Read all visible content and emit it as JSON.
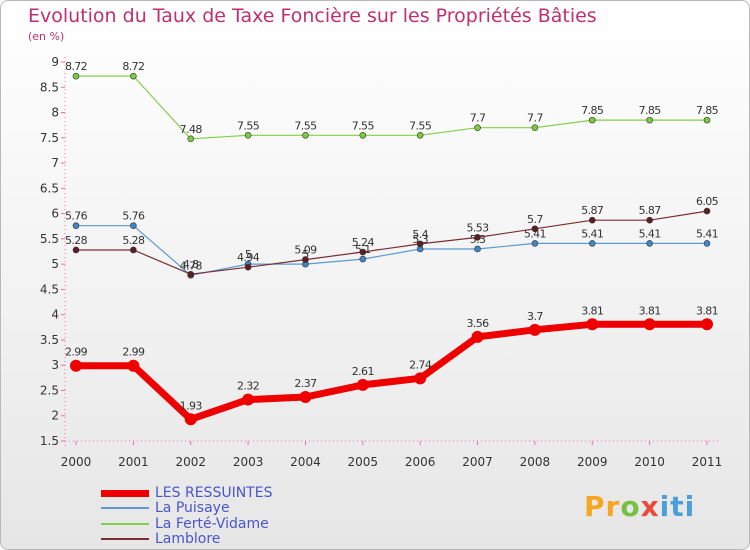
{
  "chart_data": {
    "type": "line",
    "title": "Evolution du Taux de Taxe Foncière sur les Propriétés Bâties",
    "ylabel": "(en %)",
    "xlabel": "",
    "ylim": [
      1.5,
      9
    ],
    "grid": false,
    "yticks": [
      "1.5",
      "2",
      "2.5",
      "3",
      "3.5",
      "4",
      "4.5",
      "5",
      "5.5",
      "6",
      "6.5",
      "7",
      "7.5",
      "8",
      "8.5",
      "9"
    ],
    "categories": [
      "2000",
      "2001",
      "2002",
      "2003",
      "2004",
      "2005",
      "2006",
      "2007",
      "2008",
      "2009",
      "2010",
      "2011"
    ],
    "series": [
      {
        "name": "La Ferté-Vidame",
        "color": "#82cf4b",
        "marker": "#7acb3e",
        "width": 1.2,
        "values": [
          8.72,
          8.72,
          7.48,
          7.55,
          7.55,
          7.55,
          7.55,
          7.7,
          7.7,
          7.85,
          7.85,
          7.85
        ],
        "labels": [
          "8.72",
          "8.72",
          "7.48",
          "7.55",
          "7.55",
          "7.55",
          "7.55",
          "7.7",
          "7.7",
          "7.85",
          "7.85",
          "7.85"
        ]
      },
      {
        "name": "La Puisaye",
        "color": "#5b9bd0",
        "marker": "#3f86c4",
        "width": 1.2,
        "values": [
          5.76,
          5.76,
          4.78,
          5.0,
          5.0,
          5.1,
          5.3,
          5.3,
          5.41,
          5.41,
          5.41,
          5.41
        ],
        "labels": [
          "5.76",
          "5.76",
          "4.78",
          "5",
          "5",
          "5.1",
          "5.3",
          "5.3",
          "5.41",
          "5.41",
          "5.41",
          "5.41"
        ]
      },
      {
        "name": "Lamblore",
        "color": "#7a2d35",
        "marker": "#5d1d25",
        "width": 1.2,
        "values": [
          5.28,
          5.28,
          4.8,
          4.94,
          5.09,
          5.24,
          5.4,
          5.53,
          5.7,
          5.87,
          5.87,
          6.05
        ],
        "labels": [
          "5.28",
          "5.28",
          "4.8",
          "4.94",
          "5.09",
          "5.24",
          "5.4",
          "5.53",
          "5.7",
          "5.87",
          "5.87",
          "6.05"
        ]
      },
      {
        "name": "LES RESSUINTES",
        "color": "#ee0000",
        "marker": "#ee0000",
        "width": 7,
        "values": [
          2.99,
          2.99,
          1.93,
          2.32,
          2.37,
          2.61,
          2.74,
          3.56,
          3.7,
          3.81,
          3.81,
          3.81
        ],
        "labels": [
          "2.99",
          "2.99",
          "1.93",
          "2.32",
          "2.37",
          "2.61",
          "2.74",
          "3.56",
          "3.7",
          "3.81",
          "3.81",
          "3.81"
        ]
      }
    ],
    "legend": [
      "LES RESSUINTES",
      "La Puisaye",
      "La Ferté-Vidame",
      "Lamblore"
    ],
    "legend_position": "bottom-left"
  },
  "logo": {
    "p": "Pr",
    "o": "o",
    "x": "x",
    "iti": "iti"
  }
}
